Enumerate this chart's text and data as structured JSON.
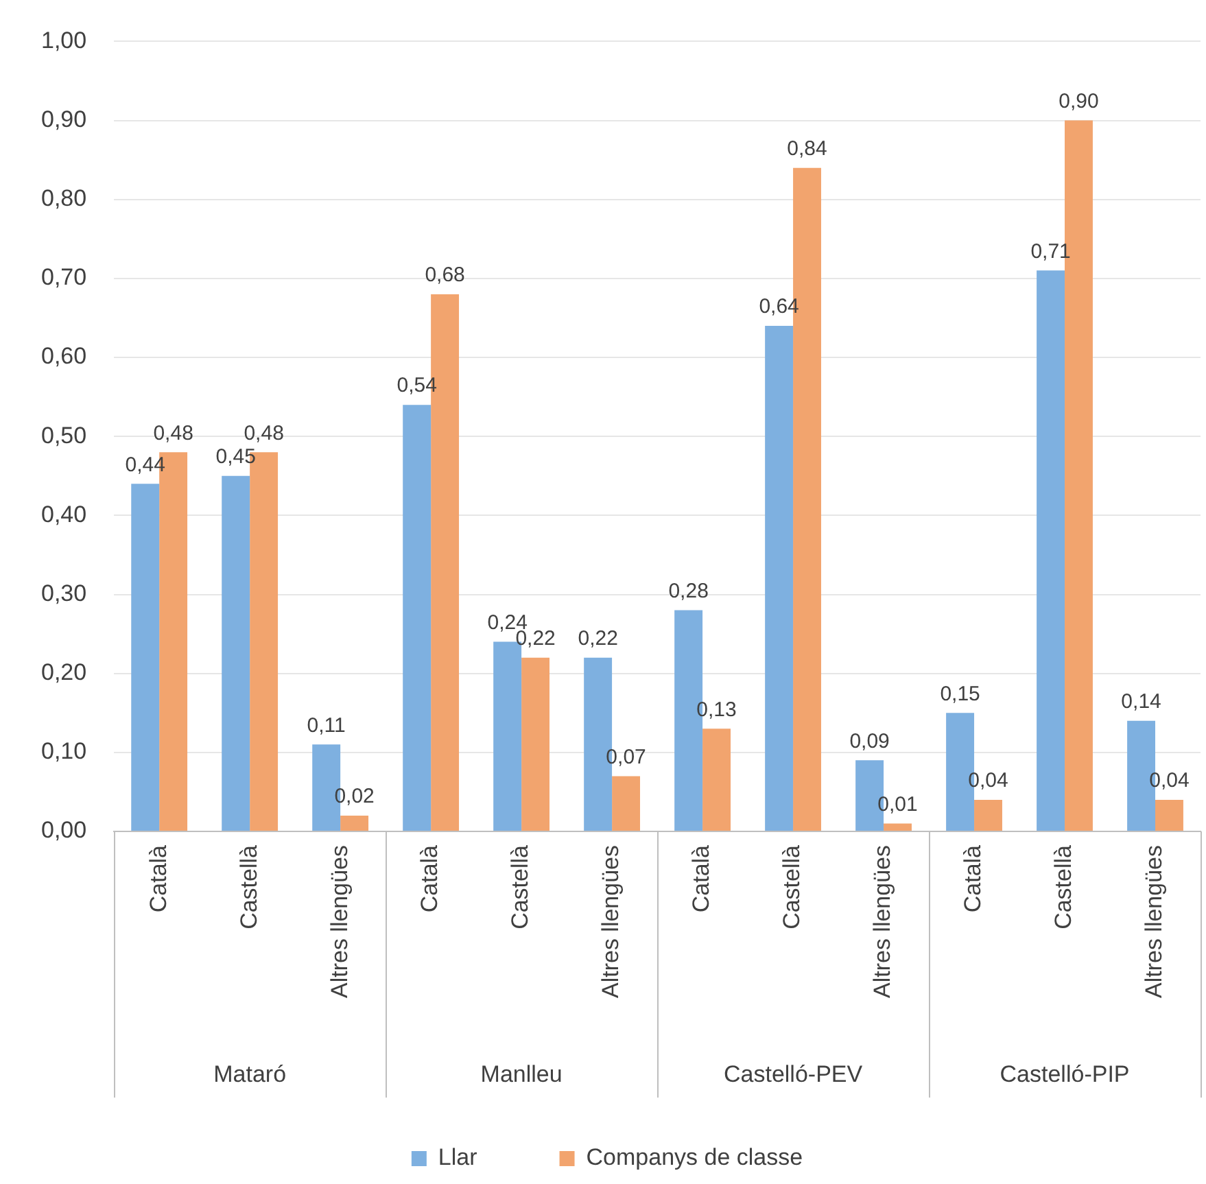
{
  "chart_data": {
    "type": "bar",
    "categories": [
      "Català",
      "Castellà",
      "Altres llengües",
      "Català",
      "Castellà",
      "Altres llengües",
      "Català",
      "Castellà",
      "Altres llengües",
      "Català",
      "Castellà",
      "Altres llengües"
    ],
    "annotations": [
      "Mataró",
      "Manlleu",
      "Castelló-PEV",
      "Castelló-PIP"
    ],
    "series": [
      {
        "name": "Llar",
        "color": "#7eb0e0",
        "values": [
          0.44,
          0.45,
          0.11,
          0.54,
          0.24,
          0.22,
          0.28,
          0.64,
          0.09,
          0.15,
          0.71,
          0.14
        ],
        "value_labels": [
          "0,44",
          "0,45",
          "0,11",
          "0,54",
          "0,24",
          "0,22",
          "0,28",
          "0,64",
          "0,09",
          "0,15",
          "0,71",
          "0,14"
        ]
      },
      {
        "name": "Companys de classe",
        "color": "#f2a46e",
        "values": [
          0.48,
          0.48,
          0.02,
          0.68,
          0.22,
          0.07,
          0.13,
          0.84,
          0.01,
          0.04,
          0.9,
          0.04
        ],
        "value_labels": [
          "0,48",
          "0,48",
          "0,02",
          "0,68",
          "0,22",
          "0,07",
          "0,13",
          "0,84",
          "0,01",
          "0,04",
          "0,90",
          "0,04"
        ]
      }
    ],
    "ylim": [
      0,
      1
    ],
    "yticks": [
      {
        "value": 0,
        "label": "0,00"
      },
      {
        "value": 0.1,
        "label": "0,10"
      },
      {
        "value": 0.2,
        "label": "0,20"
      },
      {
        "value": 0.3,
        "label": "0,30"
      },
      {
        "value": 0.4,
        "label": "0,40"
      },
      {
        "value": 0.5,
        "label": "0,50"
      },
      {
        "value": 0.6,
        "label": "0,60"
      },
      {
        "value": 0.7,
        "label": "0,70"
      },
      {
        "value": 0.8,
        "label": "0,80"
      },
      {
        "value": 0.9,
        "label": "0,90"
      },
      {
        "value": 1,
        "label": "1,00"
      }
    ],
    "grid": "y",
    "legend": "bottom"
  }
}
